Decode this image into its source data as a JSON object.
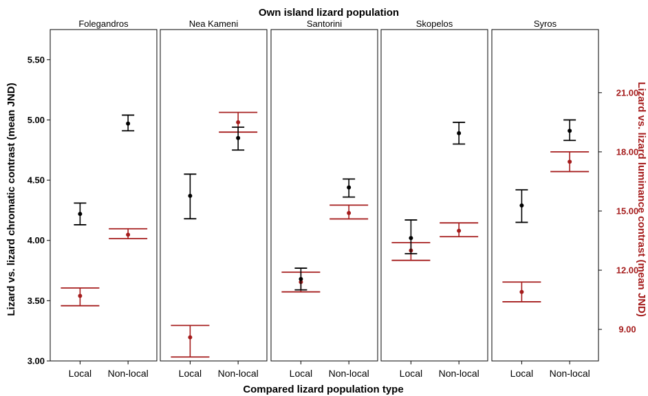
{
  "chart_data": {
    "type": "scatter",
    "title": "Own island lizard population",
    "xlabel": "Compared lizard population type",
    "ylabel_left": "Lizard vs. lizard chromatic contrast (mean JND)",
    "ylabel_right": "Lizard vs. lizard luminance contrast (mean JND)",
    "categories": [
      "Local",
      "Non-local"
    ],
    "ylim_left": [
      3.0,
      5.75
    ],
    "yticks_left": [
      "3.00",
      "3.50",
      "4.00",
      "4.50",
      "5.00",
      "5.50"
    ],
    "ylim_right": [
      7.4,
      24.2
    ],
    "yticks_right": [
      "9.00",
      "12.00",
      "15.00",
      "18.00",
      "21.00"
    ],
    "colors": {
      "chromatic": "#000000",
      "luminance": "#a51c1c"
    },
    "panels": [
      {
        "name": "Folegandros",
        "chromatic": [
          {
            "mean": 4.22,
            "lower": 4.13,
            "upper": 4.31
          },
          {
            "mean": 4.97,
            "lower": 4.91,
            "upper": 5.04
          }
        ],
        "luminance": [
          {
            "mean": 10.7,
            "lower": 10.2,
            "upper": 11.1
          },
          {
            "mean": 13.8,
            "lower": 13.6,
            "upper": 14.1
          }
        ]
      },
      {
        "name": "Nea Kameni",
        "chromatic": [
          {
            "mean": 4.37,
            "lower": 4.18,
            "upper": 4.55
          },
          {
            "mean": 4.85,
            "lower": 4.75,
            "upper": 4.94
          }
        ],
        "luminance": [
          {
            "mean": 8.6,
            "lower": 7.6,
            "upper": 9.2
          },
          {
            "mean": 19.5,
            "lower": 19.0,
            "upper": 20.0
          }
        ]
      },
      {
        "name": "Santorini",
        "chromatic": [
          {
            "mean": 3.68,
            "lower": 3.59,
            "upper": 3.77
          },
          {
            "mean": 4.44,
            "lower": 4.36,
            "upper": 4.51
          }
        ],
        "luminance": [
          {
            "mean": 11.4,
            "lower": 10.9,
            "upper": 11.9
          },
          {
            "mean": 14.9,
            "lower": 14.6,
            "upper": 15.3
          }
        ]
      },
      {
        "name": "Skopelos",
        "chromatic": [
          {
            "mean": 4.02,
            "lower": 3.89,
            "upper": 4.17
          },
          {
            "mean": 4.89,
            "lower": 4.8,
            "upper": 4.98
          }
        ],
        "luminance": [
          {
            "mean": 13.0,
            "lower": 12.5,
            "upper": 13.4
          },
          {
            "mean": 14.0,
            "lower": 13.7,
            "upper": 14.4
          }
        ]
      },
      {
        "name": "Syros",
        "chromatic": [
          {
            "mean": 4.29,
            "lower": 4.15,
            "upper": 4.42
          },
          {
            "mean": 4.91,
            "lower": 4.83,
            "upper": 5.0
          }
        ],
        "luminance": [
          {
            "mean": 10.9,
            "lower": 10.4,
            "upper": 11.4
          },
          {
            "mean": 17.5,
            "lower": 17.0,
            "upper": 18.0
          }
        ]
      }
    ]
  }
}
